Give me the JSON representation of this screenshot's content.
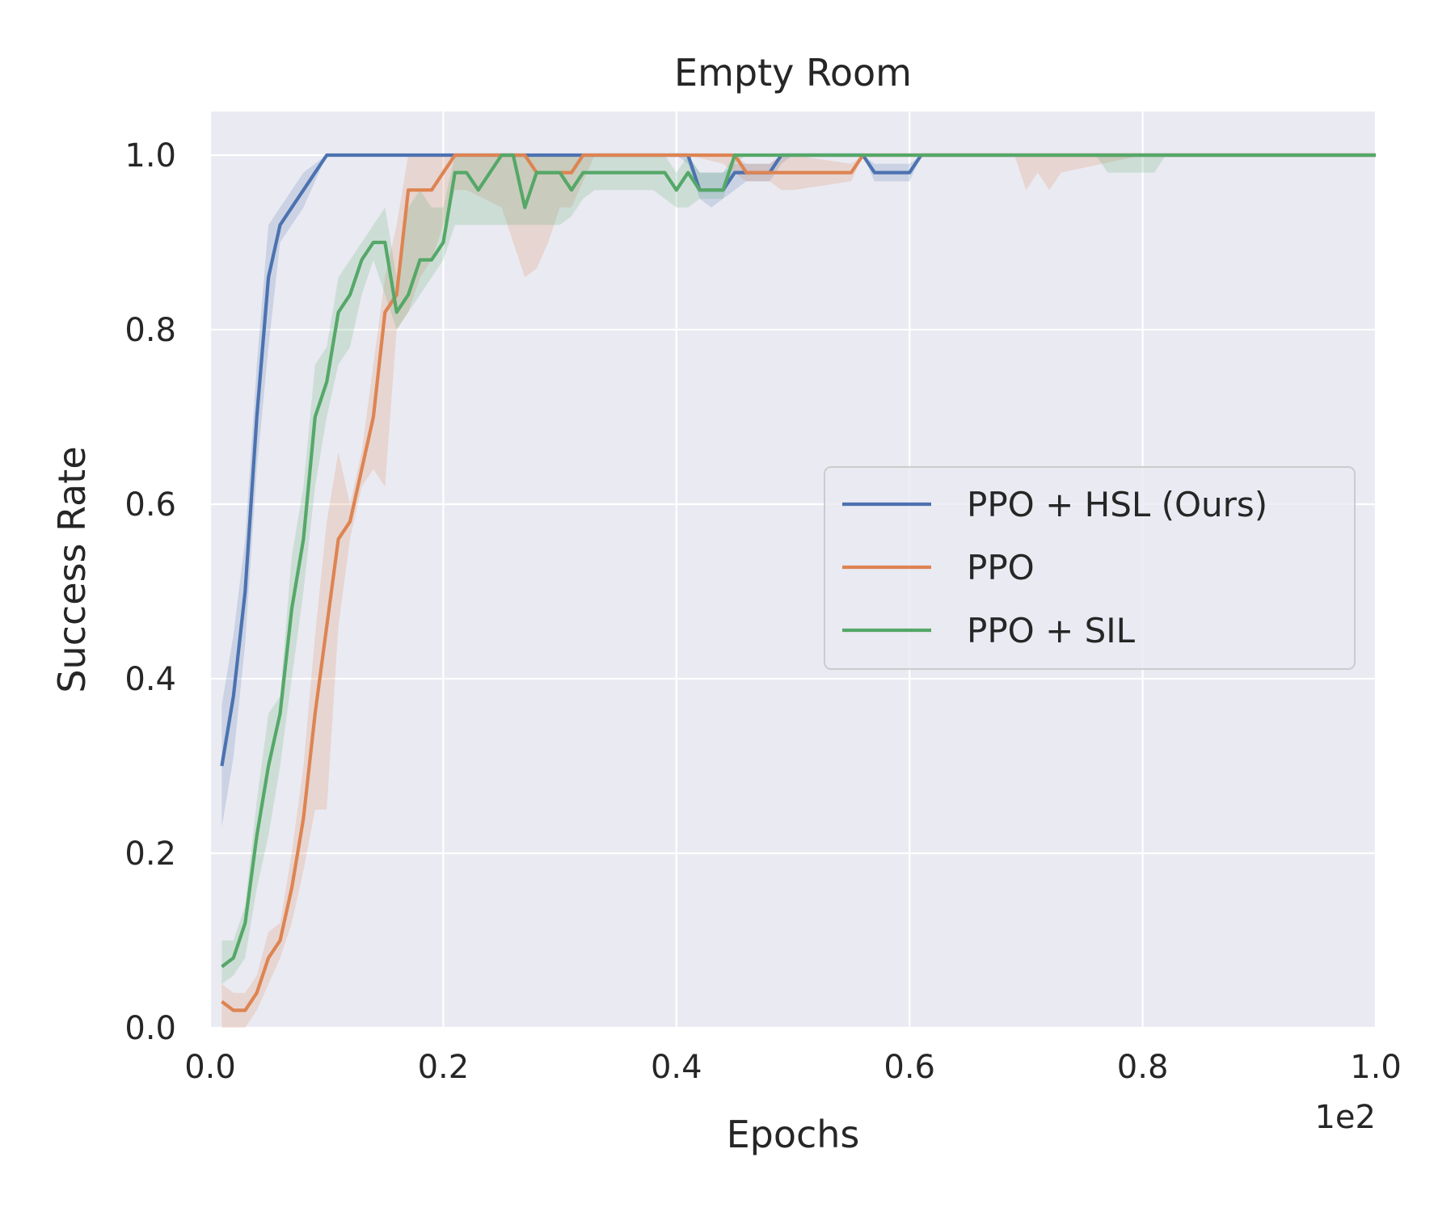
{
  "chart_data": {
    "type": "line",
    "title": "Empty Room",
    "xlabel": "Epochs",
    "ylabel": "Success Rate",
    "x_offset_text": "1e2",
    "xlim": [
      0.0,
      1.0
    ],
    "ylim": [
      0.0,
      1.05
    ],
    "xticks": [
      0.0,
      0.2,
      0.4,
      0.6,
      0.8,
      1.0
    ],
    "xtick_labels": [
      "0.0",
      "0.2",
      "0.4",
      "0.6",
      "0.8",
      "1.0"
    ],
    "yticks": [
      0.0,
      0.2,
      0.4,
      0.6,
      0.8,
      1.0
    ],
    "ytick_labels": [
      "0.0",
      "0.2",
      "0.4",
      "0.6",
      "0.8",
      "1.0"
    ],
    "grid": true,
    "legend_position": "center-right",
    "series": [
      {
        "name": "PPO + HSL (Ours)",
        "color": "#4c72b0",
        "x": [
          0.01,
          0.02,
          0.03,
          0.04,
          0.05,
          0.06,
          0.07,
          0.08,
          0.09,
          0.1,
          0.2,
          0.3,
          0.4,
          0.41,
          0.42,
          0.43,
          0.44,
          0.45,
          0.46,
          0.47,
          0.48,
          0.49,
          0.5,
          0.55,
          0.56,
          0.57,
          0.58,
          0.59,
          0.6,
          0.61,
          0.7,
          0.8,
          0.9,
          1.0
        ],
        "y": [
          0.3,
          0.38,
          0.5,
          0.7,
          0.86,
          0.92,
          0.94,
          0.96,
          0.98,
          1.0,
          1.0,
          1.0,
          1.0,
          1.0,
          0.96,
          0.96,
          0.96,
          0.98,
          0.98,
          0.98,
          0.98,
          1.0,
          1.0,
          1.0,
          1.0,
          0.98,
          0.98,
          0.98,
          0.98,
          1.0,
          1.0,
          1.0,
          1.0,
          1.0
        ],
        "lower": [
          0.23,
          0.31,
          0.44,
          0.64,
          0.78,
          0.9,
          0.92,
          0.94,
          0.97,
          1.0,
          1.0,
          1.0,
          1.0,
          0.99,
          0.95,
          0.94,
          0.95,
          0.96,
          0.97,
          0.97,
          0.97,
          0.99,
          1.0,
          1.0,
          1.0,
          0.97,
          0.97,
          0.97,
          0.97,
          1.0,
          1.0,
          1.0,
          1.0,
          1.0
        ],
        "upper": [
          0.37,
          0.45,
          0.56,
          0.76,
          0.92,
          0.94,
          0.96,
          0.98,
          0.99,
          1.0,
          1.0,
          1.0,
          1.0,
          1.0,
          0.98,
          0.98,
          0.98,
          0.99,
          0.99,
          0.99,
          0.99,
          1.0,
          1.0,
          1.0,
          1.0,
          0.99,
          0.99,
          0.99,
          0.99,
          1.0,
          1.0,
          1.0,
          1.0,
          1.0
        ]
      },
      {
        "name": "PPO",
        "color": "#dd8452",
        "x": [
          0.01,
          0.02,
          0.03,
          0.04,
          0.05,
          0.06,
          0.07,
          0.08,
          0.09,
          0.1,
          0.11,
          0.12,
          0.13,
          0.14,
          0.15,
          0.16,
          0.17,
          0.18,
          0.19,
          0.2,
          0.21,
          0.22,
          0.25,
          0.26,
          0.27,
          0.28,
          0.29,
          0.3,
          0.31,
          0.32,
          0.33,
          0.4,
          0.41,
          0.44,
          0.45,
          0.46,
          0.47,
          0.48,
          0.49,
          0.5,
          0.55,
          0.56,
          0.57,
          0.6,
          0.69,
          0.7,
          0.71,
          0.72,
          0.73,
          0.8,
          0.9,
          1.0
        ],
        "y": [
          0.03,
          0.02,
          0.02,
          0.04,
          0.08,
          0.1,
          0.16,
          0.24,
          0.36,
          0.46,
          0.56,
          0.58,
          0.64,
          0.7,
          0.82,
          0.84,
          0.96,
          0.96,
          0.96,
          0.98,
          1.0,
          1.0,
          1.0,
          1.0,
          1.0,
          0.98,
          0.98,
          0.98,
          0.98,
          1.0,
          1.0,
          1.0,
          1.0,
          1.0,
          1.0,
          0.98,
          0.98,
          0.98,
          0.98,
          0.98,
          0.98,
          1.0,
          1.0,
          1.0,
          1.0,
          1.0,
          1.0,
          1.0,
          1.0,
          1.0,
          1.0,
          1.0
        ],
        "lower": [
          0.0,
          0.0,
          0.0,
          0.02,
          0.05,
          0.08,
          0.12,
          0.18,
          0.25,
          0.25,
          0.46,
          0.56,
          0.62,
          0.64,
          0.62,
          0.8,
          0.82,
          0.86,
          0.88,
          0.92,
          0.96,
          0.96,
          0.94,
          0.9,
          0.86,
          0.87,
          0.9,
          0.94,
          0.94,
          0.97,
          1.0,
          1.0,
          1.0,
          0.99,
          0.98,
          0.97,
          0.97,
          0.97,
          0.96,
          0.96,
          0.97,
          1.0,
          1.0,
          1.0,
          1.0,
          0.96,
          0.98,
          0.96,
          0.98,
          1.0,
          1.0,
          1.0
        ],
        "upper": [
          0.05,
          0.04,
          0.04,
          0.06,
          0.11,
          0.12,
          0.2,
          0.3,
          0.45,
          0.58,
          0.66,
          0.6,
          0.66,
          0.76,
          0.86,
          0.92,
          1.0,
          1.0,
          1.0,
          1.0,
          1.0,
          1.0,
          1.0,
          1.0,
          1.0,
          1.0,
          1.0,
          1.0,
          1.0,
          1.0,
          1.0,
          1.0,
          1.0,
          1.0,
          1.0,
          0.99,
          0.99,
          0.99,
          1.0,
          1.0,
          0.99,
          1.0,
          1.0,
          1.0,
          1.0,
          1.0,
          1.0,
          1.0,
          1.0,
          1.0,
          1.0,
          1.0
        ]
      },
      {
        "name": "PPO + SIL",
        "color": "#55a868",
        "x": [
          0.01,
          0.02,
          0.03,
          0.04,
          0.05,
          0.06,
          0.07,
          0.08,
          0.09,
          0.1,
          0.11,
          0.12,
          0.13,
          0.14,
          0.15,
          0.16,
          0.17,
          0.18,
          0.19,
          0.2,
          0.21,
          0.22,
          0.23,
          0.24,
          0.25,
          0.26,
          0.27,
          0.28,
          0.29,
          0.3,
          0.31,
          0.32,
          0.33,
          0.35,
          0.38,
          0.39,
          0.4,
          0.41,
          0.42,
          0.43,
          0.44,
          0.45,
          0.46,
          0.5,
          0.6,
          0.76,
          0.77,
          0.81,
          0.82,
          0.9,
          1.0
        ],
        "y": [
          0.07,
          0.08,
          0.12,
          0.22,
          0.3,
          0.36,
          0.48,
          0.56,
          0.7,
          0.74,
          0.82,
          0.84,
          0.88,
          0.9,
          0.9,
          0.82,
          0.84,
          0.88,
          0.88,
          0.9,
          0.98,
          0.98,
          0.96,
          0.98,
          1.0,
          1.0,
          0.94,
          0.98,
          0.98,
          0.98,
          0.96,
          0.98,
          0.98,
          0.98,
          0.98,
          0.98,
          0.96,
          0.98,
          0.96,
          0.96,
          0.96,
          1.0,
          1.0,
          1.0,
          1.0,
          1.0,
          1.0,
          1.0,
          1.0,
          1.0,
          1.0
        ],
        "lower": [
          0.05,
          0.06,
          0.08,
          0.16,
          0.22,
          0.3,
          0.4,
          0.5,
          0.62,
          0.7,
          0.76,
          0.78,
          0.84,
          0.88,
          0.84,
          0.8,
          0.82,
          0.84,
          0.86,
          0.88,
          0.92,
          0.92,
          0.92,
          0.92,
          0.92,
          0.92,
          0.92,
          0.92,
          0.92,
          0.92,
          0.93,
          0.95,
          0.96,
          0.96,
          0.96,
          0.95,
          0.94,
          0.94,
          0.95,
          0.95,
          0.95,
          0.99,
          1.0,
          1.0,
          1.0,
          1.0,
          0.98,
          0.98,
          1.0,
          1.0,
          1.0
        ],
        "upper": [
          0.1,
          0.1,
          0.14,
          0.26,
          0.36,
          0.38,
          0.54,
          0.62,
          0.76,
          0.78,
          0.86,
          0.88,
          0.9,
          0.92,
          0.94,
          0.86,
          0.94,
          0.96,
          0.94,
          0.94,
          1.0,
          1.0,
          1.0,
          1.0,
          1.0,
          1.0,
          1.0,
          1.0,
          1.0,
          1.0,
          1.0,
          1.0,
          1.0,
          1.0,
          1.0,
          1.0,
          0.98,
          1.0,
          0.98,
          0.98,
          0.98,
          1.0,
          1.0,
          1.0,
          1.0,
          1.0,
          1.0,
          1.0,
          1.0,
          1.0,
          1.0
        ]
      }
    ]
  }
}
